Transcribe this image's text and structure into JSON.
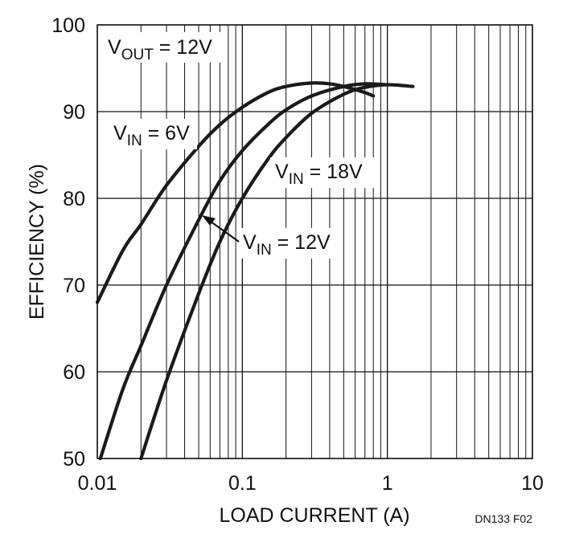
{
  "chart_data": {
    "type": "line",
    "xscale": "log",
    "xlim": [
      0.01,
      10
    ],
    "ylim": [
      50,
      100
    ],
    "x_ticks": [
      0.01,
      0.1,
      1,
      10
    ],
    "x_tick_labels": [
      "0.01",
      "0.1",
      "1",
      "10"
    ],
    "y_ticks": [
      50,
      60,
      70,
      80,
      90,
      100
    ],
    "y_tick_labels": [
      "50",
      "60",
      "70",
      "80",
      "90",
      "100"
    ],
    "xlabel": "LOAD CURRENT (A)",
    "ylabel": "EFFICIENCY (%)",
    "grid": true,
    "series": [
      {
        "name": "VIN = 6V",
        "x": [
          0.01,
          0.015,
          0.02,
          0.03,
          0.05,
          0.07,
          0.1,
          0.15,
          0.2,
          0.3,
          0.4,
          0.5,
          0.7,
          0.8
        ],
        "y": [
          68,
          74,
          77,
          81.5,
          86,
          88.5,
          90.5,
          92.2,
          92.9,
          93.3,
          93.2,
          92.9,
          92.2,
          91.8
        ]
      },
      {
        "name": "VIN = 12V",
        "x": [
          0.0105,
          0.015,
          0.02,
          0.03,
          0.05,
          0.07,
          0.1,
          0.15,
          0.2,
          0.3,
          0.5,
          0.7,
          1.0
        ],
        "y": [
          50,
          58,
          63,
          70,
          77.5,
          82,
          85.5,
          88.5,
          90.2,
          91.8,
          92.9,
          93.2,
          93.1
        ]
      },
      {
        "name": "VIN = 18V",
        "x": [
          0.02,
          0.03,
          0.05,
          0.07,
          0.1,
          0.15,
          0.2,
          0.3,
          0.5,
          0.7,
          1.0,
          1.5
        ],
        "y": [
          50,
          59,
          69,
          75,
          80,
          84.5,
          87,
          89.8,
          92,
          92.8,
          93.1,
          92.9
        ]
      }
    ],
    "annotations": [
      {
        "main": "V",
        "sub": "OUT",
        "rest": " = 12V"
      },
      {
        "main": "V",
        "sub": "IN",
        "rest": " = 6V"
      },
      {
        "main": "V",
        "sub": "IN",
        "rest": " = 18V"
      },
      {
        "main": "V",
        "sub": "IN",
        "rest": " = 12V"
      }
    ],
    "figure_id": "DN133 F02"
  }
}
